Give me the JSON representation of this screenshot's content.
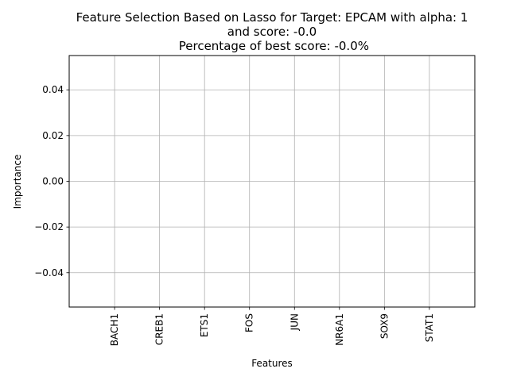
{
  "chart_data": {
    "type": "bar",
    "title_lines": [
      "Feature Selection Based on Lasso for Target: EPCAM with alpha: 1",
      "and score: -0.0",
      " Percentage of best score: -0.0%"
    ],
    "xlabel": "Features",
    "ylabel": "Importance",
    "categories": [
      "BACH1",
      "CREB1",
      "ETS1",
      "FOS",
      "JUN",
      "NR6A1",
      "SOX9",
      "STAT1"
    ],
    "values": [
      0,
      0,
      0,
      0,
      0,
      0,
      0,
      0
    ],
    "ylim": [
      -0.055,
      0.055
    ],
    "yticks": [
      -0.04,
      -0.02,
      0.0,
      0.02,
      0.04
    ],
    "ytick_labels": [
      "−0.04",
      "−0.02",
      "0.00",
      "0.02",
      "0.04"
    ],
    "grid": true,
    "legend": "none",
    "colors": {
      "bar": "#1f77b4",
      "grid": "#b0b0b0",
      "axes": "#000000"
    }
  }
}
